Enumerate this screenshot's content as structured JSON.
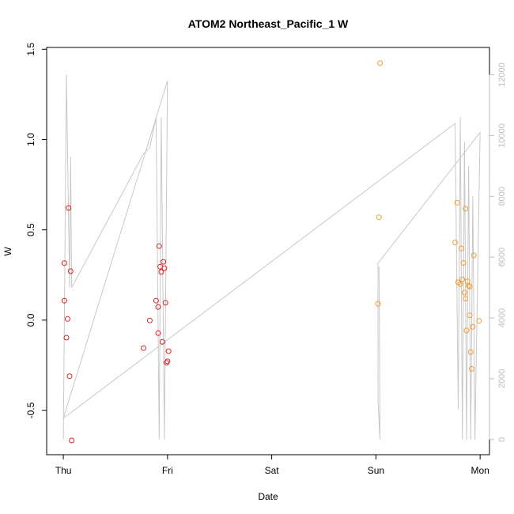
{
  "chart_data": {
    "type": "scatter",
    "title": "ATOM2 Northeast_Pacific_1 W",
    "xlabel": "Date",
    "ylabel": "W",
    "x_ticks": [
      "Thu",
      "Fri",
      "Sat",
      "Sun",
      "Mon"
    ],
    "xlim": [
      -0.16,
      4.09
    ],
    "ylim": [
      -0.745,
      1.51
    ],
    "y_ticks": [
      -0.5,
      0.0,
      0.5,
      1.0,
      1.5
    ],
    "y_tick_labels": [
      "-0.5",
      "0.0",
      "0.5",
      "1.0",
      "1.5"
    ],
    "y2lim": [
      -500,
      12900
    ],
    "y2_ticks": [
      0,
      2000,
      4000,
      6000,
      8000,
      10000,
      12000
    ],
    "y2_tick_labels": [
      "0",
      "2000",
      "4000",
      "6000",
      "8000",
      "10000",
      "12000"
    ],
    "grid": false,
    "colors": {
      "points_early": "#dd2222",
      "points_late": "#f59a30",
      "line": "#c8c8c8",
      "right_axis": "#bdbdbd"
    },
    "series": [
      {
        "color": "#dd2222",
        "points": [
          [
            0.01,
            0.316
          ],
          [
            0.01,
            0.108
          ],
          [
            0.03,
            -0.097
          ],
          [
            0.04,
            0.007
          ],
          [
            0.05,
            0.621
          ],
          [
            0.06,
            -0.31
          ],
          [
            0.07,
            0.271
          ],
          [
            0.08,
            -0.666
          ],
          [
            0.77,
            -0.155
          ],
          [
            0.83,
            -0.002
          ],
          [
            0.89,
            0.108
          ],
          [
            0.91,
            -0.072
          ],
          [
            0.91,
            0.073
          ],
          [
            0.92,
            0.41
          ],
          [
            0.93,
            0.296
          ],
          [
            0.94,
            0.267
          ],
          [
            0.95,
            -0.12
          ],
          [
            0.96,
            0.323
          ],
          [
            0.97,
            0.288
          ],
          [
            0.98,
            0.096
          ],
          [
            0.99,
            -0.236
          ],
          [
            1.0,
            -0.228
          ],
          [
            1.01,
            -0.172
          ]
        ]
      },
      {
        "color": "#f59a30",
        "points": [
          [
            3.02,
            0.091
          ],
          [
            3.03,
            0.57
          ],
          [
            3.04,
            1.423
          ],
          [
            3.76,
            0.43
          ],
          [
            3.78,
            0.65
          ],
          [
            3.79,
            0.209
          ],
          [
            3.81,
            0.2
          ],
          [
            3.82,
            0.397
          ],
          [
            3.83,
            0.226
          ],
          [
            3.84,
            0.317
          ],
          [
            3.85,
            0.153
          ],
          [
            3.86,
            0.617
          ],
          [
            3.86,
            0.119
          ],
          [
            3.87,
            -0.057
          ],
          [
            3.88,
            0.215
          ],
          [
            3.89,
            0.191
          ],
          [
            3.9,
            0.027
          ],
          [
            3.9,
            0.186
          ],
          [
            3.91,
            -0.177
          ],
          [
            3.92,
            -0.27
          ],
          [
            3.93,
            -0.037
          ],
          [
            3.94,
            0.359
          ],
          [
            3.99,
            -0.004
          ]
        ]
      }
    ],
    "line_series": {
      "axis": "right",
      "color": "#c8c8c8",
      "points": [
        [
          0.0,
          0.0
        ],
        [
          0.03,
          12000
        ],
        [
          0.06,
          5000
        ],
        [
          0.07,
          9300
        ],
        [
          0.08,
          5000
        ],
        [
          0.77,
          9400
        ],
        [
          0.83,
          9600
        ],
        [
          0.89,
          10600
        ],
        [
          0.92,
          0.0
        ],
        [
          0.94,
          10600
        ],
        [
          0.97,
          0.0
        ],
        [
          1.0,
          11800
        ],
        [
          0.0,
          700
        ],
        [
          3.76,
          10400
        ],
        [
          3.79,
          1000
        ],
        [
          3.81,
          10600
        ],
        [
          3.83,
          0.0
        ],
        [
          3.85,
          9800
        ],
        [
          3.87,
          0.0
        ],
        [
          3.89,
          9000
        ],
        [
          3.91,
          0.0
        ],
        [
          3.93,
          8000
        ],
        [
          3.95,
          0.0
        ],
        [
          4.0,
          10100
        ],
        [
          3.02,
          5800
        ],
        [
          3.02,
          1300
        ],
        [
          3.04,
          0.0
        ],
        [
          3.03,
          5700
        ]
      ]
    }
  }
}
